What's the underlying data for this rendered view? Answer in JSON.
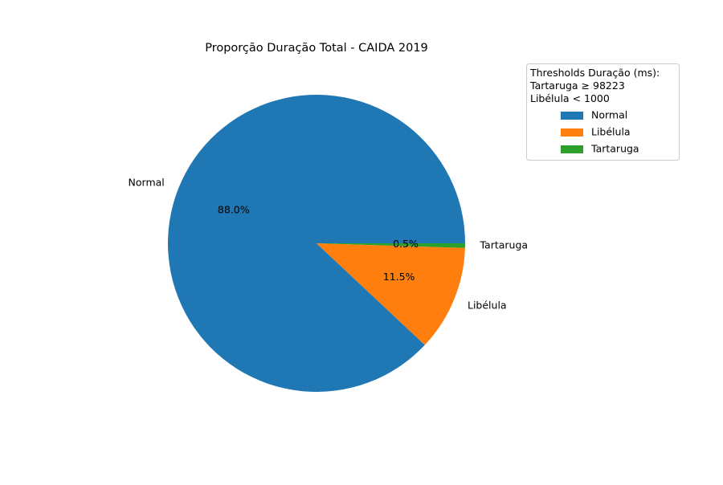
{
  "chart_data": {
    "type": "pie",
    "title": "Proporção Duração Total - CAIDA 2019",
    "categories": [
      "Normal",
      "Libélula",
      "Tartaruga"
    ],
    "values": [
      88.0,
      11.5,
      0.5
    ],
    "value_labels": [
      "88.0%",
      "11.5%",
      "0.5%"
    ],
    "colors": [
      "#1f77b4",
      "#ff7f0e",
      "#2ca02c"
    ],
    "start_angle_deg": 0,
    "direction": "counterclockwise",
    "legend": {
      "title_lines": [
        "Thresholds Duração (ms):",
        "Tartaruga ≥ 98223",
        "Libélula < 1000"
      ],
      "entries": [
        "Normal",
        "Libélula",
        "Tartaruga"
      ],
      "placement": "top-right, outside plot"
    }
  }
}
